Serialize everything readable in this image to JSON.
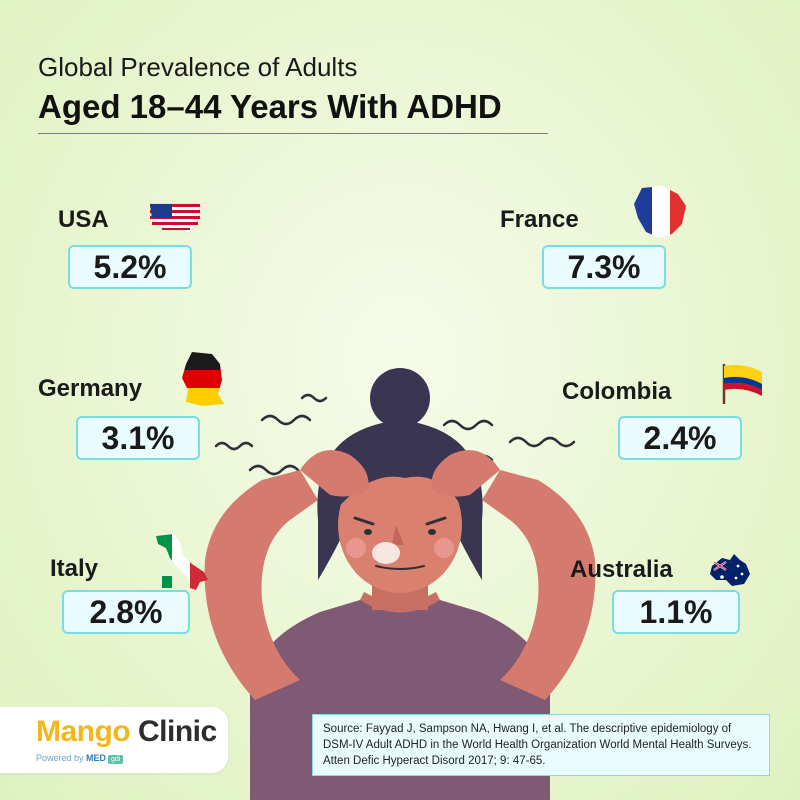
{
  "title": {
    "line1": "Global Prevalence of Adults",
    "line2": "Aged 18–44 Years With ADHD"
  },
  "countries": {
    "usa": {
      "name": "USA",
      "value": "5.2%"
    },
    "france": {
      "name": "France",
      "value": "7.3%"
    },
    "germany": {
      "name": "Germany",
      "value": "3.1%"
    },
    "colombia": {
      "name": "Colombia",
      "value": "2.4%"
    },
    "italy": {
      "name": "Italy",
      "value": "2.8%"
    },
    "australia": {
      "name": "Australia",
      "value": "1.1%"
    }
  },
  "logo": {
    "brand_first": "Mango",
    "brand_second": " Clinic",
    "powered_prefix": "Powered by ",
    "powered_brand": "MED",
    "powered_badge": "gdi"
  },
  "source": "Source: Fayyad J, Sampson NA, Hwang I, et al. The descriptive epidemiology of DSM-IV Adult ADHD in the World Health Organization World Mental Health Surveys. Atten Defic Hyperact Disord 2017; 9: 47-65.",
  "colors": {
    "box_fill": "#eafcff",
    "box_border": "#79dde6",
    "hair": "#3a3550",
    "skin": "#d47a6e",
    "shirt": "#7e5a74",
    "brand_yellow": "#f2b71b"
  },
  "icons": [
    "usa-flag-icon",
    "france-flag-icon",
    "germany-flag-icon",
    "colombia-flag-icon",
    "italy-flag-icon",
    "australia-flag-icon"
  ]
}
